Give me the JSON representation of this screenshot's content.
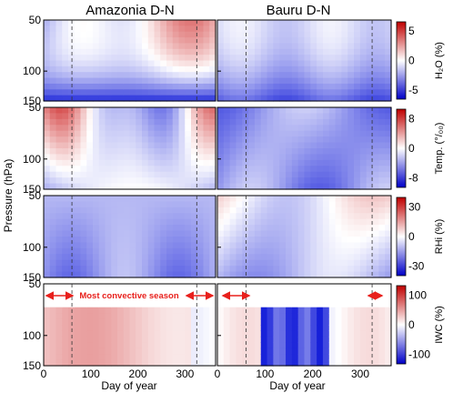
{
  "chart_data": {
    "type": "heatmap",
    "titles": [
      "Amazonia D-N",
      "Bauru D-N"
    ],
    "xlabel": "Day of year",
    "ylabel": "Pressure (hPa)",
    "xlim": [
      0,
      365
    ],
    "x_ticks": [
      "0",
      "100",
      "200",
      "300"
    ],
    "y_ticks": [
      "50",
      "100",
      "150"
    ],
    "ylim": [
      150,
      50
    ],
    "y_scale": "log",
    "dashed_lines_day": [
      60,
      325
    ],
    "rows": [
      {
        "key": "h2o",
        "colorbar_label": "H₂O (%)",
        "ticks": [
          "5",
          "0",
          "-5"
        ],
        "range": [
          -5,
          5
        ]
      },
      {
        "key": "temp",
        "colorbar_label": "Temp. (°/₀₀)",
        "ticks": [
          "8",
          "0",
          "-8"
        ],
        "range": [
          -8,
          8
        ]
      },
      {
        "key": "rhi",
        "colorbar_label": "RHi (%)",
        "ticks": [
          "30",
          "0",
          "-30"
        ],
        "range": [
          -30,
          30
        ]
      },
      {
        "key": "iwc",
        "colorbar_label": "IWC (%)",
        "ticks": [
          "100",
          "0",
          "-100"
        ],
        "range": [
          -100,
          100
        ]
      }
    ],
    "annotation": "Most convective season",
    "colormap": {
      "negative": "#0a14d8",
      "zero": "#ffffff",
      "positive": "#cc1010"
    }
  }
}
